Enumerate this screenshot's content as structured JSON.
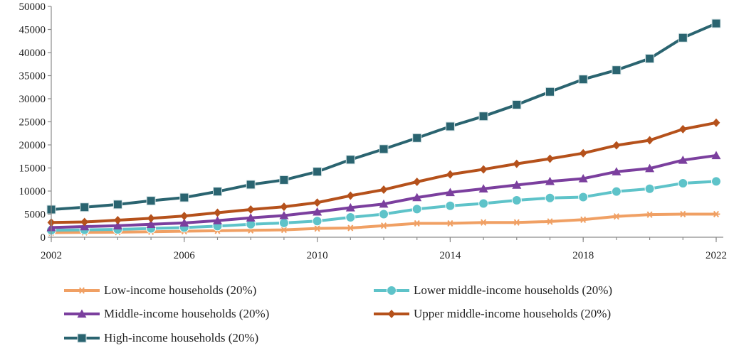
{
  "chart_data": {
    "type": "line",
    "title": "",
    "xlabel": "",
    "ylabel": "",
    "x": [
      2002,
      2003,
      2004,
      2005,
      2006,
      2007,
      2008,
      2009,
      2010,
      2011,
      2012,
      2013,
      2014,
      2015,
      2016,
      2017,
      2018,
      2019,
      2020,
      2021,
      2022
    ],
    "x_ticks": [
      "2002",
      "2006",
      "2010",
      "2014",
      "2018",
      "2022"
    ],
    "y_ticks": [
      "0",
      "5000",
      "10000",
      "15000",
      "20000",
      "25000",
      "30000",
      "35000",
      "40000",
      "45000",
      "50000"
    ],
    "ylim": [
      0,
      50000
    ],
    "xlim": [
      2002,
      2022
    ],
    "grid": false,
    "legend_position": "bottom",
    "series": [
      {
        "name": "Low-income households (20%)",
        "color": "#f0a064",
        "marker": "star-icon",
        "values": [
          1000,
          1050,
          1100,
          1200,
          1300,
          1400,
          1500,
          1600,
          1900,
          2000,
          2500,
          3000,
          3000,
          3200,
          3200,
          3400,
          3800,
          4500,
          4900,
          5000,
          5000
        ]
      },
      {
        "name": "Lower middle-income households (20%)",
        "color": "#5ec3c9",
        "marker": "circle-icon",
        "values": [
          1500,
          1600,
          1700,
          1900,
          2100,
          2400,
          2800,
          3100,
          3500,
          4300,
          5000,
          6100,
          6800,
          7300,
          8000,
          8500,
          8700,
          9900,
          10500,
          11700,
          12100
        ]
      },
      {
        "name": "Middle-income households (20%)",
        "color": "#7b3f9e",
        "marker": "triangle-icon",
        "values": [
          2100,
          2300,
          2500,
          2800,
          3100,
          3600,
          4200,
          4700,
          5500,
          6400,
          7200,
          8600,
          9700,
          10500,
          11300,
          12100,
          12700,
          14200,
          14900,
          16700,
          17700
        ]
      },
      {
        "name": "Upper middle-income households (20%)",
        "color": "#b5511b",
        "marker": "diamond-icon",
        "values": [
          3200,
          3300,
          3700,
          4100,
          4600,
          5300,
          6000,
          6600,
          7500,
          9000,
          10300,
          12000,
          13600,
          14700,
          15900,
          17000,
          18200,
          19900,
          21000,
          23400,
          24800
        ]
      },
      {
        "name": "High-income households (20%)",
        "color": "#2a6470",
        "marker": "square-icon",
        "values": [
          6000,
          6500,
          7100,
          7900,
          8600,
          9900,
          11400,
          12400,
          14200,
          16800,
          19100,
          21500,
          24000,
          26200,
          28700,
          31500,
          34200,
          36200,
          38700,
          43200,
          46300
        ]
      }
    ]
  }
}
